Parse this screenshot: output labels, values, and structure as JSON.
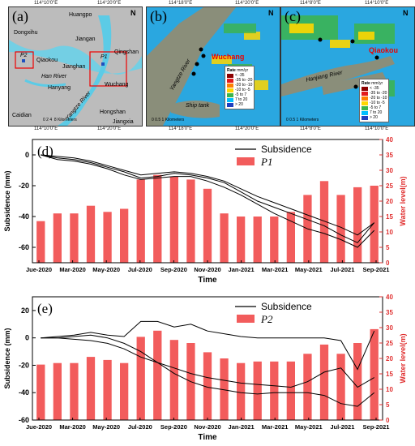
{
  "maps": {
    "a": {
      "label": "(a)",
      "coords_top": [
        "114°10'0\"E",
        "114°20'0\"E"
      ],
      "coords_bottom": [
        "114°10'0\"E",
        "114°20'0\"E"
      ],
      "coords_left": [
        "30°40'0\"N",
        "30°30'0\"N"
      ],
      "places": [
        "Huangpo",
        "Dongxihu",
        "Jiangan",
        "Qiaokou",
        "Jianghan",
        "Qingshan",
        "Han River",
        "Hanyang",
        "Wuchang",
        "Yangtze River",
        "Hongshan",
        "Caidian",
        "Jiangxia"
      ],
      "points": [
        "P2",
        "P1"
      ],
      "scale_ticks": [
        "0",
        "2",
        "4",
        "8"
      ],
      "scale_unit": "Kilometers"
    },
    "b": {
      "label": "(b)",
      "coords_top": [
        "114°18'0\"E",
        "114°20'0\"E"
      ],
      "coords_bottom": [
        "114°18'0\"E",
        "114°20'0\"E"
      ],
      "coords_left": [
        "30°34'0\"N",
        "30°32'0\"N"
      ],
      "places": [
        "Wuchang",
        "Yangtze River",
        "Ship tank"
      ],
      "scale_ticks": [
        "0",
        "0.5",
        "1"
      ],
      "scale_unit": "Kilometers"
    },
    "c": {
      "label": "(c)",
      "coords_top": [
        "114°8'0\"E",
        "114°10'0\"E"
      ],
      "coords_bottom": [
        "114°8'0\"E",
        "114°10'0\"E"
      ],
      "coords_left": [
        "30°36'0\"N",
        "30°34'0\"N"
      ],
      "places": [
        "Qiaokou",
        "Hanjiang River"
      ],
      "scale_ticks": [
        "0",
        "0.5",
        "1"
      ],
      "scale_unit": "Kilometers"
    },
    "legend": {
      "title": "Rate",
      "unit": "mm/yr",
      "classes": [
        {
          "label": "< -35",
          "color": "#8b0000"
        },
        {
          "label": "-35 to -20",
          "color": "#e31a1c"
        },
        {
          "label": "-20 to -10",
          "color": "#ff7f00"
        },
        {
          "label": "-10 to -5",
          "color": "#ffd700"
        },
        {
          "label": "-5 to 7",
          "color": "#3cb44b"
        },
        {
          "label": "7 to 20",
          "color": "#00bfff"
        },
        {
          "label": "> 20",
          "color": "#1f3fbf"
        }
      ]
    }
  },
  "chart_data": [
    {
      "type": "bar",
      "panel_label": "(d)",
      "xlabel": "Time",
      "ylabel_left": "Subsidence (mm)",
      "ylabel_right": "Water level(m)",
      "ylim_left": [
        -70,
        10
      ],
      "ylim_right": [
        0,
        40
      ],
      "yticks_left": [
        0,
        -20,
        -40,
        -60
      ],
      "yticks_right": [
        0,
        5,
        10,
        15,
        20,
        25,
        30,
        35,
        40
      ],
      "tick_labels": [
        "Jue-2020",
        "Mar-2020",
        "May-2020",
        "Jul-2020",
        "Sep-2020",
        "Nov-2020",
        "Jan-2021",
        "Mar-2021",
        "May-2021",
        "Jul-2021",
        "Sep-2021"
      ],
      "legend": [
        "Subsidence",
        "P1"
      ],
      "bar_color": "#f25c5c",
      "water_level": [
        13.5,
        16,
        16,
        18.5,
        16.5,
        17.5,
        27,
        28.5,
        28,
        27,
        24,
        16,
        15,
        15,
        15,
        16.5,
        22,
        26.5,
        22,
        24.5,
        25
      ],
      "subsidence_lines": [
        [
          0,
          -2,
          -3,
          -5,
          -8,
          -11,
          -15,
          -14,
          -12,
          -13,
          -15,
          -18,
          -24,
          -30,
          -34,
          -38,
          -42,
          -46,
          -52,
          -57,
          -44
        ],
        [
          0,
          -3,
          -4,
          -6,
          -9,
          -13,
          -16,
          -15,
          -14,
          -14,
          -17,
          -21,
          -26,
          -32,
          -38,
          -43,
          -48,
          -51,
          -55,
          -60,
          -49
        ],
        [
          0,
          -1,
          -2,
          -4,
          -7,
          -10,
          -13,
          -12,
          -11,
          -12,
          -14,
          -17,
          -22,
          -27,
          -31,
          -35,
          -39,
          -43,
          -47,
          -52,
          -44
        ]
      ]
    },
    {
      "type": "bar",
      "panel_label": "(e)",
      "xlabel": "Time",
      "ylabel_left": "Subsidence (mm)",
      "ylabel_right": "Water level(m)",
      "ylim_left": [
        -60,
        30
      ],
      "ylim_right": [
        0,
        40
      ],
      "yticks_left": [
        20,
        0,
        -20,
        -40,
        -60
      ],
      "yticks_right": [
        0,
        5,
        10,
        15,
        20,
        25,
        30,
        35,
        40
      ],
      "tick_labels": [
        "Jue-2020",
        "Mar-2020",
        "May-2020",
        "Jul-2020",
        "Sep-2020",
        "Nov-2020",
        "Jan-2021",
        "Mar-2021",
        "May-2021",
        "Jul-2021",
        "Sep-2021"
      ],
      "legend": [
        "Subsidence",
        "P2"
      ],
      "bar_color": "#f25c5c",
      "water_level": [
        18,
        18.5,
        18.5,
        20.5,
        19.5,
        18.5,
        27,
        29,
        26,
        25,
        22,
        20,
        18.5,
        19,
        19,
        19,
        21.5,
        24.5,
        21.5,
        25,
        29.5
      ],
      "subsidence_lines": [
        [
          0,
          1,
          2,
          4,
          2,
          1,
          12,
          12,
          8,
          10,
          5,
          3,
          1,
          0,
          0,
          0,
          0,
          0,
          -2,
          -23,
          5
        ],
        [
          0,
          0,
          -1,
          -2,
          -4,
          -8,
          -14,
          -18,
          -22,
          -26,
          -29,
          -31,
          -33,
          -34,
          -35,
          -36,
          -32,
          -25,
          -22,
          -36,
          -29
        ],
        [
          0,
          0,
          1,
          2,
          0,
          -4,
          -10,
          -18,
          -26,
          -32,
          -36,
          -38,
          -40,
          -41,
          -40,
          -40,
          -40,
          -42,
          -48,
          -50,
          -40
        ]
      ]
    }
  ]
}
